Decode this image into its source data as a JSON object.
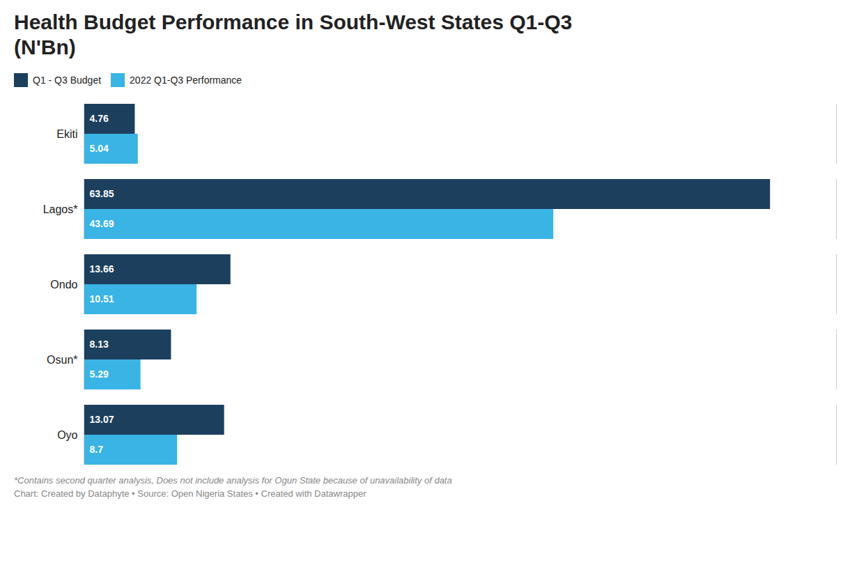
{
  "chart_data": {
    "type": "bar",
    "orientation": "horizontal",
    "title": "Health Budget Performance in South-West States Q1-Q3",
    "subtitle": "(N'Bn)",
    "categories": [
      "Ekiti",
      "Lagos*",
      "Ondo",
      "Osun*",
      "Oyo"
    ],
    "series": [
      {
        "name": "Q1 - Q3 Budget",
        "color": "#1c3f5e",
        "values": [
          4.76,
          63.85,
          13.66,
          8.13,
          13.07
        ]
      },
      {
        "name": "2022 Q1-Q3 Performance",
        "color": "#3ab4e5",
        "values": [
          5.04,
          43.69,
          10.51,
          5.29,
          8.7
        ]
      }
    ],
    "xlim": [
      0,
      70
    ],
    "grid": false,
    "legend": "top",
    "data_labels": true,
    "tick_labels": "y",
    "annotations": [
      "*Contains second quarter analysis, Does not include analysis for Ogun State because of unavailability of data",
      "Chart: Created by Dataphyte • Source: Open Nigeria States • Created with Datawrapper"
    ]
  }
}
